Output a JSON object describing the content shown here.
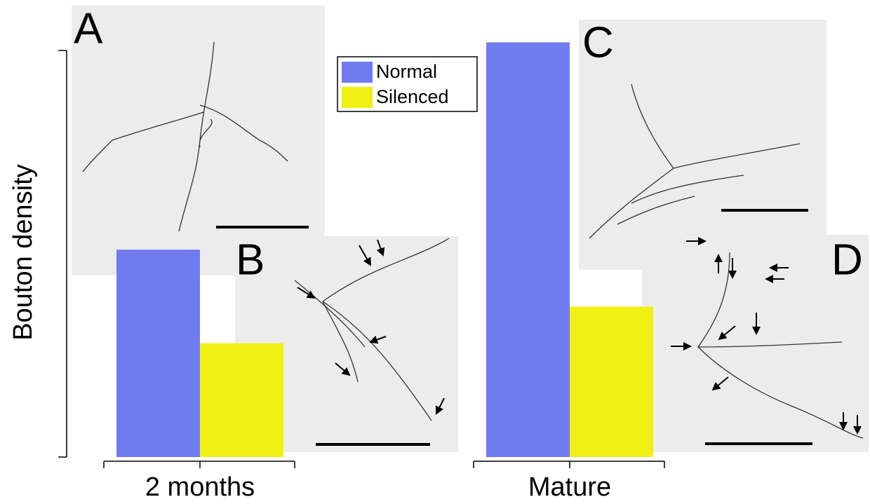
{
  "chart_data": {
    "type": "bar",
    "y_label": "Bouton density",
    "categories": [
      "2 months",
      "Mature"
    ],
    "series": [
      {
        "name": "Normal",
        "color": "#717bf0",
        "values": [
          0.51,
          1.02
        ]
      },
      {
        "name": "Silenced",
        "color": "#f0f014",
        "values": [
          0.28,
          0.37
        ]
      }
    ],
    "ylim": [
      0,
      1
    ],
    "annotations": [
      "A",
      "B",
      "C",
      "D"
    ]
  }
}
